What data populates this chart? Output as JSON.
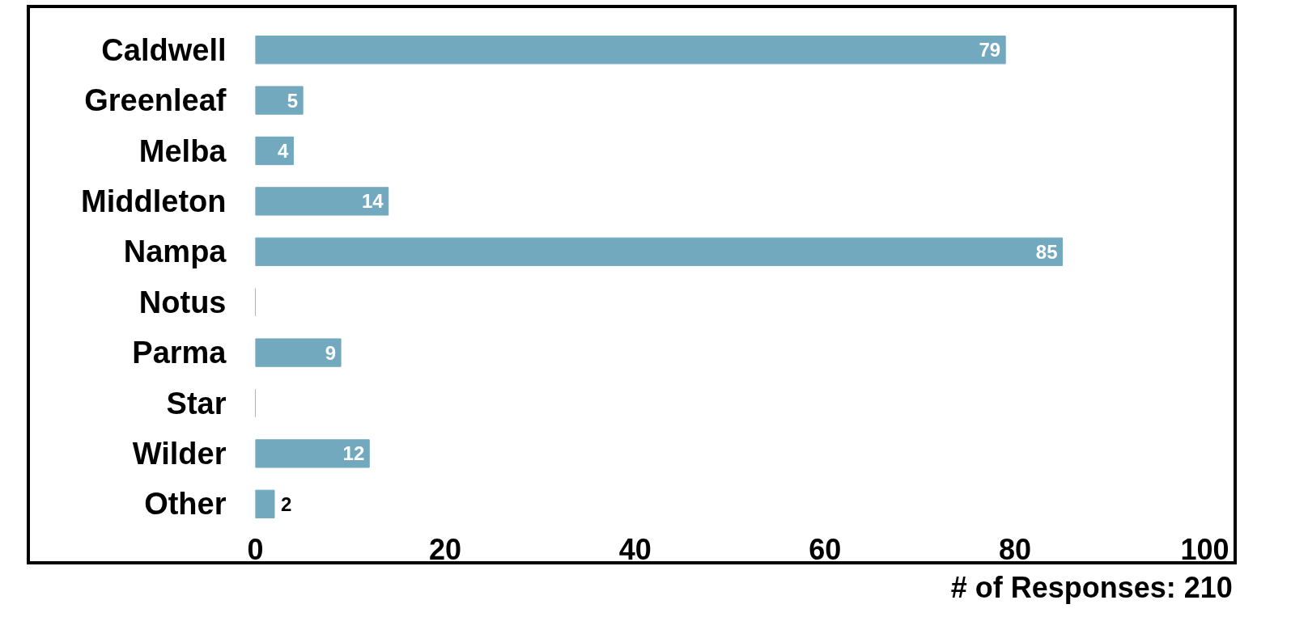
{
  "chart_data": {
    "type": "bar",
    "orientation": "horizontal",
    "categories": [
      "Caldwell",
      "Greenleaf",
      "Melba",
      "Middleton",
      "Nampa",
      "Notus",
      "Parma",
      "Star",
      "Wilder",
      "Other"
    ],
    "values": [
      79,
      5,
      4,
      14,
      85,
      0,
      9,
      0,
      12,
      2
    ],
    "value_labels": [
      "79",
      "5",
      "4",
      "14",
      "85",
      null,
      "9",
      null,
      "12",
      "2"
    ],
    "color": "#72a9be",
    "xlim": [
      0,
      100
    ],
    "xticks": [
      0,
      20,
      40,
      60,
      80,
      100
    ],
    "grid": false,
    "annotations": [
      "# of Responses: 210"
    ]
  }
}
